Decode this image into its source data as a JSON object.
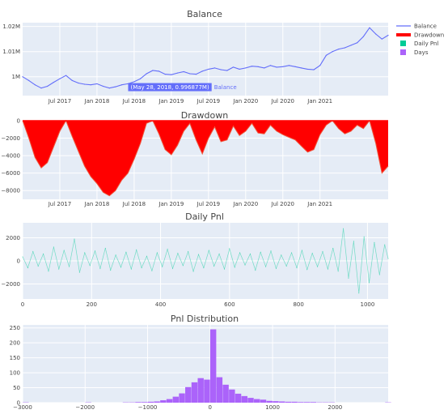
{
  "colors": {
    "plot_bg": "#e5ecf6",
    "grid": "#ffffff",
    "balance": "#636efa",
    "drawdown_fill": "#ff0000",
    "drawdown_line": "#ef553b",
    "daily_pnl": "#00cc96",
    "days": "#ab63fa"
  },
  "legend": {
    "placement": "top-right",
    "items": [
      {
        "label": "Balance",
        "kind": "line"
      },
      {
        "label": "Drawdown",
        "kind": "thick-line"
      },
      {
        "label": "Daily Pnl",
        "kind": "square"
      },
      {
        "label": "Days",
        "kind": "square"
      }
    ]
  },
  "chart_data": [
    {
      "id": "balance",
      "type": "line",
      "title": "Balance",
      "xlabel": "",
      "ylabel": "",
      "x_start": "2017-01",
      "x_end": "2021-12",
      "x_ticks": [
        "Jul 2017",
        "Jan 2018",
        "Jul 2018",
        "Jan 2019",
        "Jul 2019",
        "Jan 2020",
        "Jul 2020",
        "Jan 2021"
      ],
      "y_ticks": [
        "1M",
        "1.01M",
        "1.02M"
      ],
      "ylim": [
        0.9925,
        1.0215
      ],
      "series": [
        {
          "x": [
            "2017-01",
            "2017-02",
            "2017-03",
            "2017-04",
            "2017-05",
            "2017-06",
            "2017-07",
            "2017-08",
            "2017-09",
            "2017-10",
            "2017-11",
            "2017-12",
            "2018-01",
            "2018-02",
            "2018-03",
            "2018-04",
            "2018-05",
            "2018-06",
            "2018-07",
            "2018-08",
            "2018-09",
            "2018-10",
            "2018-11",
            "2018-12",
            "2019-01",
            "2019-02",
            "2019-03",
            "2019-04",
            "2019-05",
            "2019-06",
            "2019-07",
            "2019-08",
            "2019-09",
            "2019-10",
            "2019-11",
            "2019-12",
            "2020-01",
            "2020-02",
            "2020-03",
            "2020-04",
            "2020-05",
            "2020-06",
            "2020-07",
            "2020-08",
            "2020-09",
            "2020-10",
            "2020-11",
            "2020-12",
            "2021-01",
            "2021-02",
            "2021-03",
            "2021-04",
            "2021-05",
            "2021-06",
            "2021-07",
            "2021-08",
            "2021-09",
            "2021-10",
            "2021-11",
            "2021-12"
          ],
          "values": [
            1.0,
            0.9985,
            0.9968,
            0.9955,
            0.9962,
            0.9978,
            0.9992,
            1.0005,
            0.9985,
            0.9975,
            0.997,
            0.9968,
            0.9972,
            0.9962,
            0.9955,
            0.996,
            0.9968,
            0.9972,
            0.998,
            0.9992,
            1.0012,
            1.0025,
            1.0022,
            1.001,
            1.0008,
            1.0015,
            1.002,
            1.0012,
            1.001,
            1.0022,
            1.003,
            1.0035,
            1.0028,
            1.0025,
            1.0038,
            1.003,
            1.0035,
            1.0042,
            1.004,
            1.0035,
            1.0045,
            1.0038,
            1.004,
            1.0045,
            1.004,
            1.0035,
            1.003,
            1.0028,
            1.0045,
            1.0085,
            1.01,
            1.011,
            1.0115,
            1.0125,
            1.0135,
            1.016,
            1.0195,
            1.017,
            1.015,
            1.0165
          ]
        }
      ],
      "hover": {
        "x": "2018-05-28",
        "label": "(May 28, 2018, 0.996877M)",
        "series": "Balance"
      }
    },
    {
      "id": "drawdown",
      "type": "area",
      "title": "Drawdown",
      "xlabel": "",
      "ylabel": "",
      "x_start": "2017-01",
      "x_end": "2021-12",
      "x_ticks": [
        "Jul 2017",
        "Jan 2018",
        "Jul 2018",
        "Jan 2019",
        "Jul 2019",
        "Jan 2020",
        "Jul 2020",
        "Jan 2021"
      ],
      "y_ticks": [
        "0",
        "−2000",
        "−4000",
        "−6000",
        "−8000"
      ],
      "ylim": [
        -9000,
        0
      ],
      "series": [
        {
          "x": [
            "2017-01",
            "2017-02",
            "2017-03",
            "2017-04",
            "2017-05",
            "2017-06",
            "2017-07",
            "2017-08",
            "2017-09",
            "2017-10",
            "2017-11",
            "2017-12",
            "2018-01",
            "2018-02",
            "2018-03",
            "2018-04",
            "2018-05",
            "2018-06",
            "2018-07",
            "2018-08",
            "2018-09",
            "2018-10",
            "2018-11",
            "2018-12",
            "2019-01",
            "2019-02",
            "2019-03",
            "2019-04",
            "2019-05",
            "2019-06",
            "2019-07",
            "2019-08",
            "2019-09",
            "2019-10",
            "2019-11",
            "2019-12",
            "2020-01",
            "2020-02",
            "2020-03",
            "2020-04",
            "2020-05",
            "2020-06",
            "2020-07",
            "2020-08",
            "2020-09",
            "2020-10",
            "2020-11",
            "2020-12",
            "2021-01",
            "2021-02",
            "2021-03",
            "2021-04",
            "2021-05",
            "2021-06",
            "2021-07",
            "2021-08",
            "2021-09",
            "2021-10",
            "2021-11",
            "2021-12"
          ],
          "values": [
            0,
            -2000,
            -4200,
            -5400,
            -4800,
            -3000,
            -1200,
            0,
            -1800,
            -3500,
            -5200,
            -6400,
            -7200,
            -8200,
            -8600,
            -8000,
            -6800,
            -6000,
            -4400,
            -2600,
            -300,
            0,
            -1500,
            -3300,
            -3900,
            -2800,
            -1200,
            -300,
            -2200,
            -3800,
            -2000,
            -700,
            -2400,
            -2200,
            -600,
            -1700,
            -1200,
            -300,
            -1400,
            -1500,
            -500,
            -1200,
            -1600,
            -1900,
            -2200,
            -2900,
            -3600,
            -3300,
            -1600,
            -500,
            0,
            -900,
            -1500,
            -1200,
            -500,
            -900,
            0,
            -2600,
            -6000,
            -5200
          ]
        }
      ]
    },
    {
      "id": "daily_pnl",
      "type": "line",
      "title": "Daily Pnl",
      "xlabel": "",
      "ylabel": "",
      "x_ticks": [
        "0",
        "200",
        "400",
        "600",
        "800",
        "1000"
      ],
      "xlim": [
        0,
        1060
      ],
      "y_ticks": [
        "2000",
        "0",
        "−2000"
      ],
      "ylim": [
        -3300,
        3300
      ],
      "series": [
        {
          "x": [
            0,
            15,
            30,
            45,
            60,
            75,
            90,
            105,
            120,
            135,
            150,
            165,
            180,
            195,
            210,
            225,
            240,
            255,
            270,
            285,
            300,
            315,
            330,
            345,
            360,
            375,
            390,
            405,
            420,
            435,
            450,
            465,
            480,
            495,
            510,
            525,
            540,
            555,
            570,
            585,
            600,
            615,
            630,
            645,
            660,
            675,
            690,
            705,
            720,
            735,
            750,
            765,
            780,
            795,
            810,
            825,
            840,
            855,
            870,
            885,
            900,
            915,
            930,
            945,
            960,
            975,
            990,
            1005,
            1020,
            1035,
            1050,
            1060
          ],
          "values": [
            350,
            -600,
            800,
            -450,
            600,
            -900,
            1200,
            -700,
            900,
            -500,
            1900,
            -1000,
            700,
            -400,
            850,
            -650,
            1100,
            -800,
            500,
            -550,
            750,
            -700,
            950,
            -600,
            400,
            -850,
            700,
            -500,
            1000,
            -650,
            650,
            -400,
            800,
            -900,
            550,
            -600,
            900,
            -450,
            600,
            -700,
            1050,
            -550,
            700,
            -350,
            600,
            -800,
            750,
            -500,
            850,
            -650,
            500,
            -450,
            700,
            -600,
            900,
            -750,
            650,
            -500,
            800,
            -700,
            1100,
            -900,
            2800,
            -1500,
            1700,
            -2800,
            2100,
            -1900,
            1600,
            -1200,
            1400,
            200
          ]
        }
      ]
    },
    {
      "id": "pnl_distribution",
      "type": "bar",
      "title": "Pnl Distribution",
      "xlabel": "",
      "ylabel": "",
      "x_ticks": [
        "−3000",
        "−2000",
        "−1000",
        "0",
        "1000",
        "2000"
      ],
      "xlim": [
        -3000,
        2850
      ],
      "y_ticks": [
        "0",
        "50",
        "100",
        "150",
        "200",
        "250"
      ],
      "ylim": [
        0,
        260
      ],
      "bin_width": 100,
      "bins": [
        -3000,
        -2900,
        -2800,
        -2700,
        -2600,
        -2500,
        -2400,
        -2300,
        -2200,
        -2100,
        -2000,
        -1900,
        -1800,
        -1700,
        -1600,
        -1500,
        -1400,
        -1300,
        -1200,
        -1100,
        -1000,
        -900,
        -800,
        -700,
        -600,
        -500,
        -400,
        -300,
        -200,
        -100,
        0,
        100,
        200,
        300,
        400,
        500,
        600,
        700,
        800,
        900,
        1000,
        1100,
        1200,
        1300,
        1400,
        1500,
        1600,
        1700,
        1800,
        1900,
        2000,
        2100,
        2200,
        2300,
        2400,
        2500,
        2600,
        2700,
        2800
      ],
      "values": [
        1,
        0,
        0,
        0,
        0,
        0,
        0,
        0,
        0,
        0,
        1,
        0,
        0,
        0,
        0,
        0,
        1,
        1,
        2,
        2,
        3,
        4,
        8,
        12,
        20,
        31,
        52,
        68,
        82,
        77,
        245,
        85,
        60,
        44,
        30,
        22,
        16,
        12,
        10,
        6,
        5,
        4,
        3,
        3,
        2,
        2,
        2,
        1,
        1,
        1,
        0,
        0,
        0,
        0,
        0,
        0,
        0,
        0,
        1
      ]
    }
  ]
}
